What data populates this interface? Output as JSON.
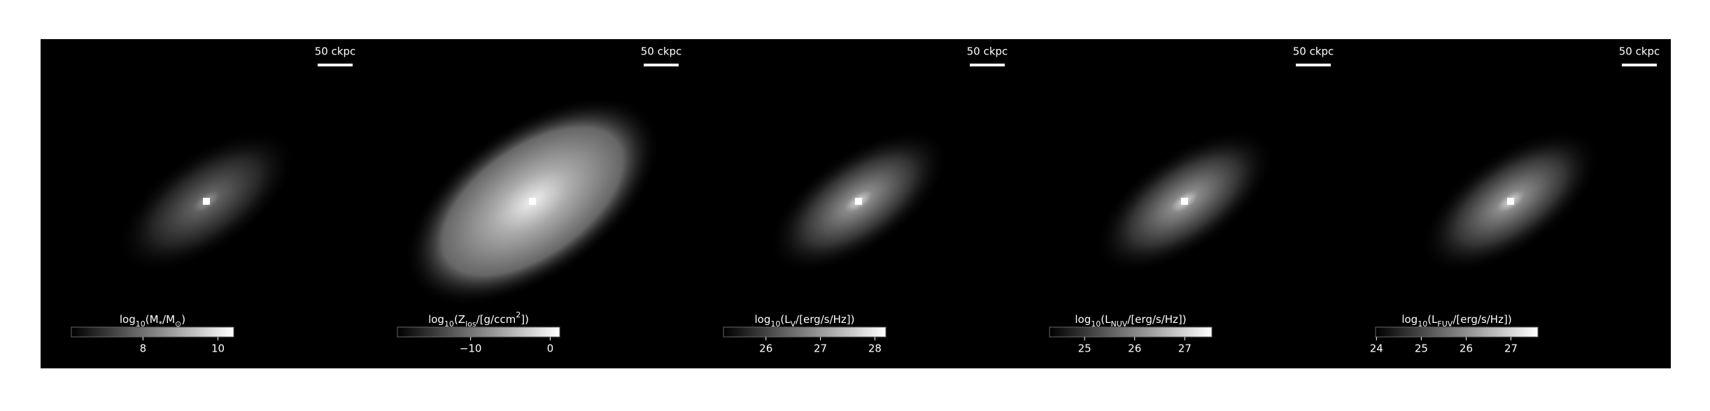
{
  "panels": [
    {
      "scale_label": "50 ckpc",
      "label": [
        {
          "t": "log"
        },
        {
          "t": "10",
          "sub": true
        },
        {
          "t": "(M"
        },
        {
          "t": "*",
          "sub": true
        },
        {
          "t": "/M"
        },
        {
          "t": "⊙",
          "sub": true
        },
        {
          "t": ")"
        }
      ],
      "clim": [
        6.09,
        10.42
      ],
      "ticks": [
        8,
        10
      ]
    },
    {
      "scale_label": "50 ckpc",
      "label": [
        {
          "t": "log"
        },
        {
          "t": "10",
          "sub": true
        },
        {
          "t": "(Z"
        },
        {
          "t": "los",
          "sub": true
        },
        {
          "t": "/[g/ccm"
        },
        {
          "t": "2",
          "sup": true
        },
        {
          "t": "])"
        }
      ],
      "clim": [
        -19.2,
        1.2
      ],
      "ticks": [
        {
          "value": -10,
          "label": "−10"
        },
        0
      ]
    },
    {
      "scale_label": "50 ckpc",
      "label": [
        {
          "t": "log"
        },
        {
          "t": "10",
          "sub": true
        },
        {
          "t": "(L"
        },
        {
          "t": "V",
          "sub": true
        },
        {
          "t": "/[erg/s/Hz])"
        }
      ],
      "clim": [
        25.22,
        28.2
      ],
      "ticks": [
        26,
        27,
        28
      ]
    },
    {
      "scale_label": "50 ckpc",
      "label": [
        {
          "t": "log"
        },
        {
          "t": "10",
          "sub": true
        },
        {
          "t": "(L"
        },
        {
          "t": "NUV",
          "sub": true
        },
        {
          "t": "/[erg/s/Hz])"
        }
      ],
      "clim": [
        24.3,
        27.54
      ],
      "ticks": [
        25,
        26,
        27
      ]
    },
    {
      "scale_label": "50 ckpc",
      "label": [
        {
          "t": "log"
        },
        {
          "t": "10",
          "sub": true
        },
        {
          "t": "(L"
        },
        {
          "t": "FUV",
          "sub": true
        },
        {
          "t": "/[erg/s/Hz])"
        }
      ],
      "clim": [
        23.98,
        27.6
      ],
      "ticks": [
        24,
        25,
        26,
        27
      ]
    }
  ]
}
